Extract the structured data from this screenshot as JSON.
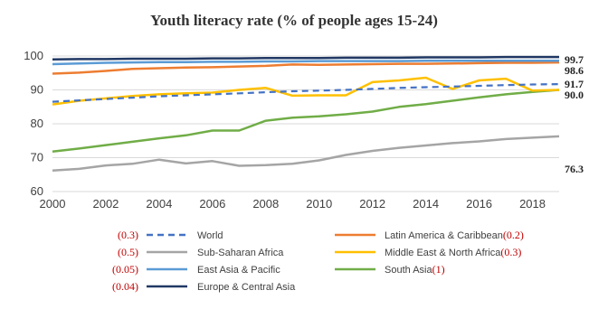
{
  "chart_data": {
    "type": "line",
    "title": "Youth literacy rate (% of people ages 15-24)",
    "xlabel": "",
    "ylabel": "",
    "ylim": [
      60,
      100
    ],
    "xlim": [
      2000,
      2019
    ],
    "yticks": [
      60,
      70,
      80,
      90,
      100
    ],
    "xticks": [
      2000,
      2002,
      2004,
      2006,
      2008,
      2010,
      2012,
      2014,
      2016,
      2018
    ],
    "grid": true,
    "legend_position": "bottom",
    "x": [
      2000,
      2001,
      2002,
      2003,
      2004,
      2005,
      2006,
      2007,
      2008,
      2009,
      2010,
      2011,
      2012,
      2013,
      2014,
      2015,
      2016,
      2017,
      2018,
      2019
    ],
    "series": [
      {
        "name": "World",
        "note": "(0.3)",
        "color": "#4472c4",
        "dash": true,
        "end_label": "91.7",
        "values": [
          86.5,
          86.9,
          87.3,
          87.7,
          88.1,
          88.4,
          88.7,
          89.0,
          89.3,
          89.6,
          89.8,
          90.0,
          90.3,
          90.6,
          90.8,
          91.0,
          91.2,
          91.4,
          91.6,
          91.7
        ]
      },
      {
        "name": "Latin America & Caribbean",
        "note": "(0.2)",
        "color": "#ed7d31",
        "dash": false,
        "end_label": "",
        "values": [
          94.8,
          95.1,
          95.6,
          96.2,
          96.4,
          96.6,
          96.7,
          96.9,
          97.1,
          97.5,
          97.4,
          97.5,
          97.6,
          97.7,
          97.7,
          97.8,
          97.9,
          98.0,
          98.0,
          98.1
        ]
      },
      {
        "name": "Sub-Saharan Africa",
        "note": "(0.5)",
        "color": "#a5a5a5",
        "dash": false,
        "end_label": "76.3",
        "values": [
          66.2,
          66.7,
          67.7,
          68.2,
          69.4,
          68.3,
          69.0,
          67.6,
          67.8,
          68.2,
          69.2,
          70.8,
          72.0,
          72.9,
          73.6,
          74.3,
          74.8,
          75.5,
          75.9,
          76.3
        ]
      },
      {
        "name": "Middle East & North Africa",
        "note": "(0.3)",
        "color": "#ffc000",
        "dash": false,
        "end_label": "90.0",
        "values": [
          85.7,
          86.8,
          87.5,
          88.2,
          88.7,
          89.0,
          89.2,
          90.0,
          90.6,
          88.3,
          88.4,
          88.4,
          92.3,
          92.8,
          93.6,
          90.3,
          92.8,
          93.3,
          89.8,
          90.0
        ]
      },
      {
        "name": "East Asia & Pacific",
        "note": "(0.05)",
        "color": "#5b9bd5",
        "dash": false,
        "end_label": "98.6",
        "values": [
          97.6,
          97.8,
          98.0,
          98.1,
          98.2,
          98.2,
          98.3,
          98.3,
          98.4,
          98.4,
          98.5,
          98.5,
          98.5,
          98.5,
          98.6,
          98.6,
          98.6,
          98.6,
          98.6,
          98.6
        ]
      },
      {
        "name": "South Asia",
        "note": "(1)",
        "color": "#70ad47",
        "dash": false,
        "end_label": "",
        "values": [
          71.8,
          72.7,
          73.7,
          74.7,
          75.7,
          76.6,
          78.0,
          78.0,
          80.9,
          81.8,
          82.2,
          82.8,
          83.6,
          85.0,
          85.8,
          86.8,
          87.8,
          88.7,
          89.4,
          90.0
        ]
      },
      {
        "name": "Europe & Central Asia",
        "note": "(0.04)",
        "color": "#203864",
        "dash": false,
        "end_label": "99.7",
        "values": [
          99.0,
          99.1,
          99.1,
          99.2,
          99.2,
          99.2,
          99.3,
          99.3,
          99.4,
          99.4,
          99.4,
          99.5,
          99.5,
          99.5,
          99.6,
          99.6,
          99.6,
          99.7,
          99.7,
          99.7
        ]
      }
    ]
  }
}
